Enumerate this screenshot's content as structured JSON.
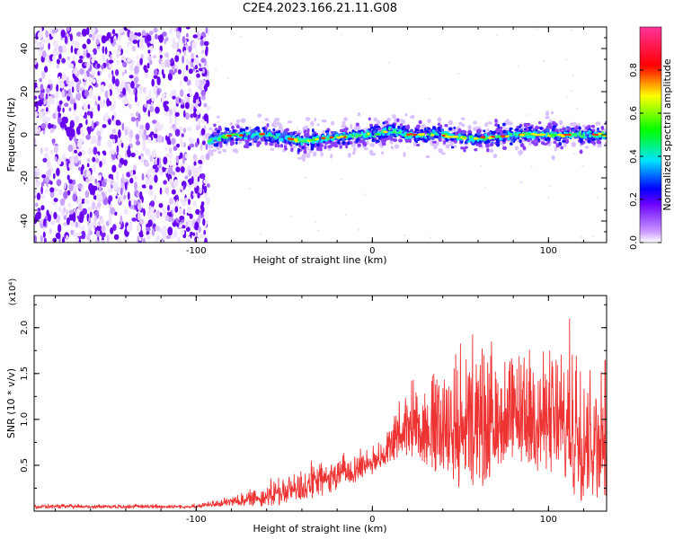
{
  "title": "C2E4.2023.166.21.11.G08",
  "chart_data": [
    {
      "type": "heatmap",
      "xlabel": "Height of straight line (km)",
      "ylabel": "Frequency (Hz)",
      "xlim": [
        -192,
        133
      ],
      "ylim": [
        -50,
        50
      ],
      "x_ticks": [
        -100,
        0,
        100
      ],
      "y_ticks": [
        -40,
        -20,
        0,
        20,
        40
      ],
      "colorbar": {
        "label": "Normalized spectral amplitude",
        "range": [
          0,
          1
        ],
        "ticks": [
          "0.0",
          "0.2",
          "0.4",
          "0.6",
          "0.8"
        ]
      },
      "noise_region_x": [
        -192,
        -93
      ],
      "signal_track": [
        {
          "x": -93,
          "y": -3
        },
        {
          "x": -80,
          "y": 0
        },
        {
          "x": -60,
          "y": 0
        },
        {
          "x": -40,
          "y": -3
        },
        {
          "x": -20,
          "y": -1
        },
        {
          "x": 0,
          "y": 0
        },
        {
          "x": 10,
          "y": 2
        },
        {
          "x": 20,
          "y": 0
        },
        {
          "x": 40,
          "y": 0
        },
        {
          "x": 60,
          "y": -2
        },
        {
          "x": 80,
          "y": 0
        },
        {
          "x": 100,
          "y": 0
        },
        {
          "x": 133,
          "y": 0
        }
      ]
    },
    {
      "type": "line",
      "xlabel": "Height of straight line (km)",
      "ylabel": "SNR (10 * v/v)",
      "y_multiplier": "(x10⁴)",
      "xlim": [
        -192,
        133
      ],
      "ylim": [
        0,
        2.35
      ],
      "x_ticks": [
        -100,
        0,
        100
      ],
      "y_ticks": [
        "0.5",
        "1.0",
        "1.5",
        "2.0"
      ],
      "color": "#ee3333",
      "envelope": [
        {
          "x": -192,
          "low": 0.03,
          "high": 0.08
        },
        {
          "x": -100,
          "low": 0.03,
          "high": 0.08
        },
        {
          "x": -85,
          "low": 0.05,
          "high": 0.15
        },
        {
          "x": -70,
          "low": 0.05,
          "high": 0.25
        },
        {
          "x": -50,
          "low": 0.05,
          "high": 0.45
        },
        {
          "x": -30,
          "low": 0.15,
          "high": 0.6
        },
        {
          "x": -10,
          "low": 0.3,
          "high": 0.7
        },
        {
          "x": 5,
          "low": 0.45,
          "high": 0.8
        },
        {
          "x": 20,
          "low": 0.6,
          "high": 1.5
        },
        {
          "x": 40,
          "low": 0.3,
          "high": 1.8
        },
        {
          "x": 60,
          "low": 0.2,
          "high": 2.1
        },
        {
          "x": 80,
          "low": 0.5,
          "high": 1.8
        },
        {
          "x": 100,
          "low": 0.4,
          "high": 1.9
        },
        {
          "x": 115,
          "low": 0.05,
          "high": 2.2
        },
        {
          "x": 133,
          "low": 0.1,
          "high": 1.8
        }
      ]
    }
  ]
}
